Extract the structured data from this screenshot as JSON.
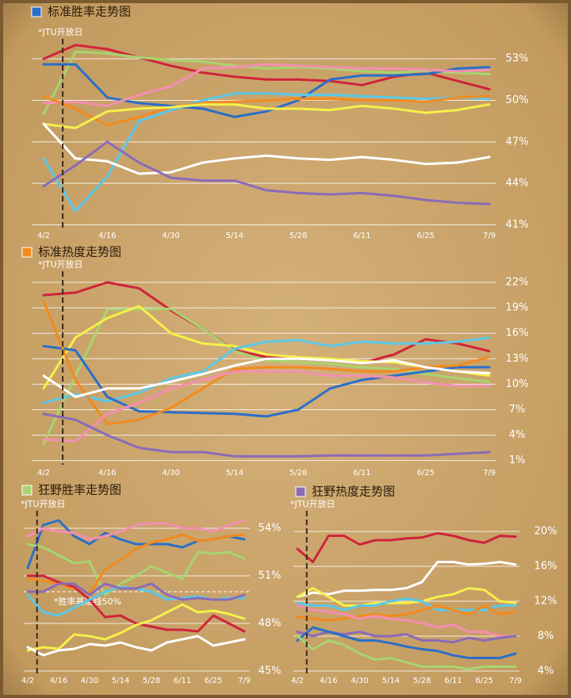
{
  "chart_data": [
    {
      "type": "line",
      "title": "标准胜率走势图",
      "title_color": "#2a6fc9",
      "annotation": "*JTU开放日",
      "categories": [
        "4/2",
        null,
        "4/16",
        null,
        "4/30",
        null,
        "5/14",
        null,
        "5/28",
        null,
        "6/11",
        null,
        "6/25",
        null,
        "7/9"
      ],
      "ylim": [
        40.8,
        54.5
      ],
      "yticks": [
        {
          "value": 41,
          "label": "41%"
        },
        {
          "value": 44,
          "label": "44%"
        },
        {
          "value": 47,
          "label": "47%"
        },
        {
          "value": 50,
          "label": "50%"
        },
        {
          "value": 53,
          "label": "53%"
        }
      ],
      "grid": true,
      "series": [
        {
          "color": "#d0243a",
          "values": [
            53.0,
            54.0,
            53.7,
            53.1,
            52.5,
            52.0,
            51.7,
            51.5,
            51.5,
            51.4,
            51.1,
            51.7,
            52.0,
            51.4,
            50.8
          ]
        },
        {
          "color": "#a8d46f",
          "values": [
            49.0,
            53.5,
            53.4,
            53.1,
            52.9,
            52.8,
            52.5,
            52.3,
            52.4,
            52.3,
            52.1,
            52.0,
            52.1,
            52.0,
            51.9
          ]
        },
        {
          "color": "#2a6fc9",
          "values": [
            52.6,
            52.6,
            50.2,
            49.8,
            49.6,
            49.4,
            48.8,
            49.2,
            50.0,
            51.5,
            51.8,
            51.8,
            51.9,
            52.3,
            52.4
          ]
        },
        {
          "color": "#f48fb1",
          "values": [
            49.8,
            49.9,
            49.6,
            50.4,
            51.0,
            52.3,
            52.4,
            52.6,
            52.5,
            52.4,
            52.3,
            52.3,
            52.2,
            52.1,
            52.2
          ]
        },
        {
          "color": "#5bc8e8",
          "values": [
            45.8,
            42.0,
            44.5,
            48.5,
            49.3,
            50.0,
            50.5,
            50.5,
            50.4,
            50.4,
            50.3,
            50.2,
            50.1,
            50.2,
            50.1
          ]
        },
        {
          "color": "#f28a1e",
          "values": [
            50.3,
            49.4,
            48.2,
            48.8,
            49.5,
            49.8,
            49.9,
            50.0,
            50.1,
            50.1,
            50.0,
            50.0,
            49.9,
            50.2,
            50.3
          ]
        },
        {
          "color": "#f5f04a",
          "values": [
            48.3,
            48.0,
            49.2,
            49.4,
            49.5,
            49.7,
            49.7,
            49.4,
            49.4,
            49.3,
            49.6,
            49.4,
            49.1,
            49.3,
            49.7
          ]
        },
        {
          "color": "#ffffff",
          "values": [
            48.3,
            45.8,
            45.6,
            44.7,
            44.8,
            45.5,
            45.8,
            46.0,
            45.8,
            45.7,
            45.9,
            45.7,
            45.4,
            45.5,
            45.9
          ]
        },
        {
          "color": "#8a6bb8",
          "values": [
            43.8,
            45.3,
            47.0,
            45.5,
            44.4,
            44.2,
            44.2,
            43.5,
            43.3,
            43.2,
            43.3,
            43.1,
            42.8,
            42.6,
            42.5
          ]
        }
      ]
    },
    {
      "type": "line",
      "title": "标准热度走势图",
      "title_color": "#f28a1e",
      "annotation": "*JTU开放日",
      "categories": [
        "4/2",
        null,
        "4/16",
        null,
        "4/30",
        null,
        "5/14",
        null,
        "5/28",
        null,
        "6/11",
        null,
        "6/25",
        null,
        "7/9"
      ],
      "ylim": [
        0.5,
        23.5
      ],
      "yticks": [
        {
          "value": 1,
          "label": "1%"
        },
        {
          "value": 4,
          "label": "4%"
        },
        {
          "value": 7,
          "label": "7%"
        },
        {
          "value": 10,
          "label": "10%"
        },
        {
          "value": 13,
          "label": "13%"
        },
        {
          "value": 16,
          "label": "16%"
        },
        {
          "value": 19,
          "label": "19%"
        },
        {
          "value": 22,
          "label": "22%"
        }
      ],
      "grid": true,
      "series": [
        {
          "color": "#d0243a",
          "values": [
            20.5,
            20.8,
            22.0,
            21.3,
            18.7,
            16.5,
            14.0,
            13.2,
            13.0,
            12.8,
            12.5,
            13.5,
            15.3,
            14.8,
            13.9
          ]
        },
        {
          "color": "#a8d46f",
          "values": [
            3.0,
            11.0,
            18.8,
            18.8,
            18.9,
            16.5,
            13.9,
            12.8,
            12.6,
            12.4,
            12.0,
            11.8,
            11.2,
            10.7,
            10.3
          ]
        },
        {
          "color": "#f5f04a",
          "values": [
            9.5,
            15.5,
            17.8,
            19.2,
            16.0,
            14.8,
            14.5,
            13.5,
            13.2,
            13.0,
            12.7,
            12.6,
            12.0,
            11.5,
            11.0
          ]
        },
        {
          "color": "#5bc8e8",
          "values": [
            7.8,
            8.8,
            8.0,
            9.0,
            10.7,
            11.5,
            14.2,
            15.0,
            15.2,
            14.5,
            15.0,
            14.8,
            14.8,
            15.0,
            15.5
          ]
        },
        {
          "color": "#2a6fc9",
          "values": [
            14.5,
            14.0,
            8.5,
            6.8,
            6.7,
            6.6,
            6.5,
            6.2,
            7.0,
            9.5,
            10.5,
            11.0,
            11.5,
            12.0,
            12.0
          ]
        },
        {
          "color": "#f28a1e",
          "values": [
            19.8,
            10.5,
            5.3,
            5.8,
            7.2,
            9.5,
            11.8,
            12.0,
            12.0,
            11.8,
            11.5,
            11.5,
            12.0,
            12.2,
            13.2
          ]
        },
        {
          "color": "#ffffff",
          "values": [
            11.0,
            8.5,
            9.5,
            9.5,
            10.3,
            11.2,
            12.2,
            13.0,
            13.0,
            12.8,
            12.5,
            12.8,
            12.0,
            11.5,
            11.3
          ]
        },
        {
          "color": "#f48fb1",
          "values": [
            3.5,
            3.3,
            6.5,
            7.8,
            9.5,
            10.5,
            11.5,
            11.5,
            11.5,
            11.0,
            11.0,
            10.8,
            10.2,
            9.8,
            9.8
          ]
        },
        {
          "color": "#8a6bb8",
          "values": [
            6.5,
            5.8,
            4.0,
            2.5,
            2.0,
            2.0,
            1.5,
            1.5,
            1.5,
            1.6,
            1.6,
            1.6,
            1.6,
            1.8,
            2.0
          ]
        }
      ]
    },
    {
      "type": "line",
      "title": "狂野胜率走势图",
      "title_color": "#a8d46f",
      "annotation": "*JTU开放日",
      "categories": [
        "4/2",
        null,
        "4/16",
        null,
        "4/30",
        null,
        "5/14",
        null,
        "5/28",
        null,
        "6/11",
        null,
        "6/25",
        null,
        "7/9"
      ],
      "ylim": [
        44.8,
        55
      ],
      "yticks": [
        {
          "value": 45,
          "label": "45%"
        },
        {
          "value": 48,
          "label": "48%"
        },
        {
          "value": 51,
          "label": "51%"
        },
        {
          "value": 54,
          "label": "54%"
        }
      ],
      "grid": true,
      "reference_line": {
        "value": 50,
        "label": "*胜率基准线50%"
      },
      "series": [
        {
          "color": "#2a6fc9",
          "values": [
            51.5,
            54.2,
            54.5,
            53.5,
            53.0,
            53.7,
            53.3,
            53.0,
            53.0,
            53.0,
            52.8,
            53.2,
            53.3,
            53.5,
            53.3
          ]
        },
        {
          "color": "#f48fb1",
          "values": [
            53.5,
            54.0,
            53.8,
            53.7,
            53.3,
            53.5,
            53.8,
            54.2,
            54.3,
            54.3,
            54.0,
            54.0,
            53.8,
            54.2,
            54.5
          ]
        },
        {
          "color": "#a8d46f",
          "values": [
            53.0,
            52.8,
            52.3,
            51.8,
            51.9,
            49.8,
            50.5,
            51.0,
            51.6,
            51.2,
            50.8,
            52.5,
            52.4,
            52.5,
            52.1
          ]
        },
        {
          "color": "#f28a1e",
          "values": [
            50.8,
            50.7,
            50.5,
            50.2,
            49.9,
            51.4,
            52.0,
            52.7,
            53.1,
            53.3,
            53.6,
            53.2,
            53.3,
            53.5,
            53.6
          ]
        },
        {
          "color": "#d0243a",
          "values": [
            51.0,
            51.0,
            50.6,
            50.3,
            49.5,
            48.4,
            48.5,
            48.0,
            47.8,
            47.6,
            47.6,
            47.5,
            48.5,
            48.0,
            47.5
          ]
        },
        {
          "color": "#5bc8e8",
          "values": [
            49.8,
            48.7,
            48.5,
            49.0,
            49.5,
            50.0,
            50.3,
            50.2,
            50.0,
            49.5,
            49.6,
            49.7,
            49.5,
            49.6,
            49.6
          ]
        },
        {
          "color": "#8a6bb8",
          "values": [
            50.0,
            50.0,
            50.5,
            50.5,
            49.8,
            50.5,
            50.2,
            50.2,
            50.5,
            49.8,
            49.5,
            49.6,
            49.5,
            49.5,
            49.8
          ]
        },
        {
          "color": "#f5f04a",
          "values": [
            46.3,
            46.5,
            46.4,
            47.3,
            47.2,
            47.0,
            47.4,
            47.9,
            48.2,
            48.7,
            49.2,
            48.7,
            48.8,
            48.6,
            48.3
          ]
        },
        {
          "color": "#ffffff",
          "values": [
            46.5,
            46.0,
            46.3,
            46.4,
            46.7,
            46.6,
            46.8,
            46.5,
            46.3,
            46.8,
            47.0,
            47.2,
            46.6,
            46.8,
            47.0
          ]
        }
      ]
    },
    {
      "type": "line",
      "title": "狂野热度走势图",
      "title_color": "#8a6bb8",
      "annotation": "*JTU开放日",
      "categories": [
        "4/2",
        null,
        "4/16",
        null,
        "4/30",
        null,
        "5/14",
        null,
        "5/28",
        null,
        "6/11",
        null,
        "6/25",
        null,
        "7/9"
      ],
      "ylim": [
        3.5,
        21.5
      ],
      "yticks": [
        {
          "value": 4,
          "label": "4%"
        },
        {
          "value": 8,
          "label": "8%"
        },
        {
          "value": 12,
          "label": "12%"
        },
        {
          "value": 16,
          "label": "16%"
        },
        {
          "value": 20,
          "label": "20%"
        }
      ],
      "grid": true,
      "series": [
        {
          "color": "#d0243a",
          "values": [
            18.0,
            16.5,
            19.5,
            19.5,
            18.5,
            19.0,
            19.0,
            19.2,
            19.3,
            19.8,
            19.5,
            19.0,
            18.7,
            19.5,
            19.4
          ]
        },
        {
          "color": "#ffffff",
          "values": [
            12.5,
            13.0,
            12.8,
            13.2,
            13.2,
            13.3,
            13.3,
            13.5,
            14.2,
            16.5,
            16.5,
            16.2,
            16.3,
            16.5,
            16.2
          ]
        },
        {
          "color": "#f5f04a",
          "values": [
            12.5,
            13.5,
            12.5,
            11.5,
            11.5,
            11.8,
            11.8,
            11.8,
            12.0,
            12.5,
            12.8,
            13.5,
            13.3,
            12.0,
            11.8
          ]
        },
        {
          "color": "#5bc8e8",
          "values": [
            11.8,
            11.5,
            11.5,
            11.0,
            11.5,
            11.5,
            12.0,
            12.3,
            12.0,
            11.0,
            11.0,
            11.0,
            11.0,
            11.5,
            11.5
          ]
        },
        {
          "color": "#f28a1e",
          "values": [
            10.2,
            10.0,
            9.8,
            10.0,
            10.3,
            10.5,
            10.3,
            10.5,
            11.0,
            11.5,
            11.0,
            10.5,
            11.5,
            10.5,
            10.8
          ]
        },
        {
          "color": "#f48fb1",
          "values": [
            11.5,
            11.0,
            10.8,
            10.5,
            10.0,
            10.3,
            10.0,
            9.8,
            9.5,
            9.0,
            9.3,
            8.5,
            8.5,
            8.0,
            8.0
          ]
        },
        {
          "color": "#8a6bb8",
          "values": [
            8.5,
            8.0,
            8.5,
            8.2,
            8.5,
            8.0,
            8.0,
            8.2,
            7.5,
            7.5,
            7.3,
            7.8,
            7.5,
            7.8,
            8.0
          ]
        },
        {
          "color": "#2a6fc9",
          "values": [
            7.5,
            9.0,
            8.5,
            8.0,
            7.5,
            7.5,
            7.2,
            6.8,
            6.5,
            6.3,
            5.8,
            5.5,
            5.5,
            5.5,
            6.0
          ]
        },
        {
          "color": "#a8d46f",
          "values": [
            8.0,
            6.5,
            7.5,
            7.0,
            6.0,
            5.3,
            5.5,
            5.0,
            4.5,
            4.5,
            4.5,
            4.2,
            4.5,
            4.5,
            4.5
          ]
        }
      ]
    }
  ]
}
